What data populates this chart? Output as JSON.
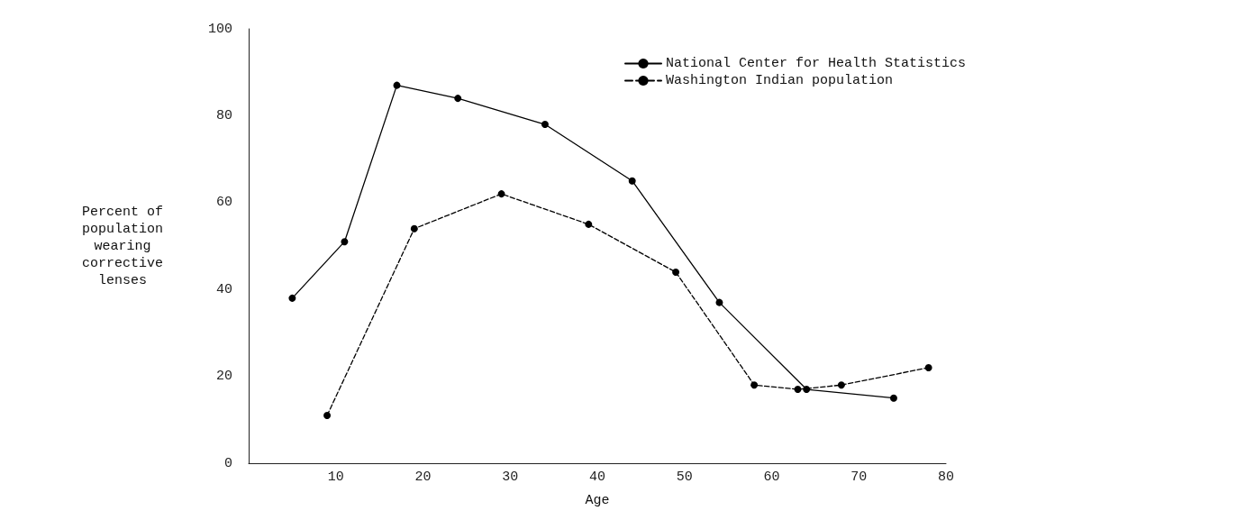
{
  "chart_data": {
    "type": "line",
    "xlabel": "Age",
    "ylabel": "Percent of\npopulation\nwearing\ncorrective\nlenses",
    "xlim": [
      0,
      80
    ],
    "xticks": [
      10,
      20,
      30,
      40,
      50,
      60,
      70,
      80
    ],
    "ylim": [
      0,
      100
    ],
    "yticks": [
      0,
      20,
      40,
      60,
      80,
      100
    ],
    "grid": false,
    "legend": "top right",
    "marker": "circle",
    "series": [
      {
        "name": "National Center for Health Statistics",
        "color": "#000000",
        "line_style": "solid",
        "x": [
          5,
          11,
          17,
          24,
          34,
          44,
          54,
          64,
          74
        ],
        "values": [
          38,
          51,
          87,
          84,
          78,
          65,
          37,
          17,
          15
        ]
      },
      {
        "name": "Washington Indian population",
        "color": "#000000",
        "line_style": "dashed",
        "x": [
          9,
          19,
          29,
          39,
          49,
          58,
          63,
          68,
          78
        ],
        "values": [
          11,
          54,
          62,
          55,
          44,
          18,
          17,
          18,
          22
        ]
      }
    ]
  }
}
